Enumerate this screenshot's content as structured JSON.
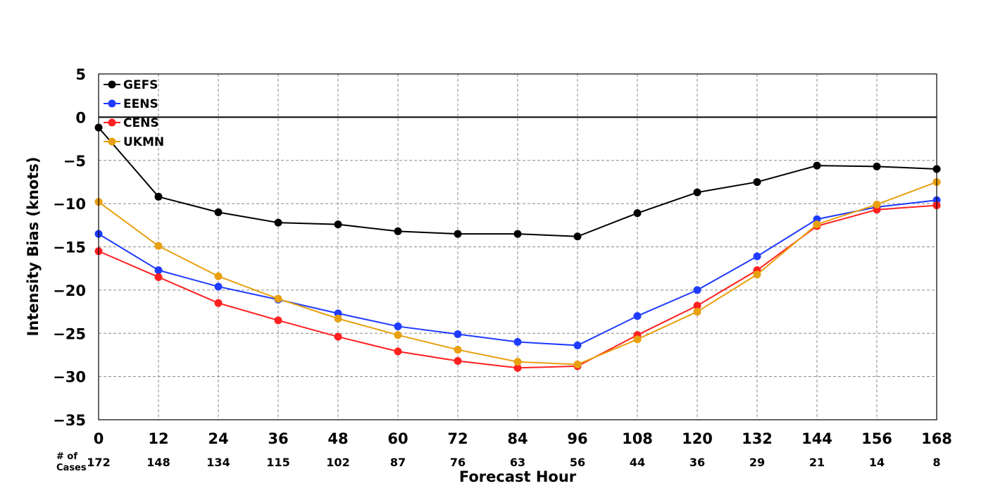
{
  "chart_data": {
    "type": "line",
    "xlabel": "Forecast Hour",
    "ylabel": "Intensity Bias (knots)",
    "x": [
      0,
      12,
      24,
      36,
      48,
      60,
      72,
      84,
      96,
      108,
      120,
      132,
      144,
      156,
      168
    ],
    "xlim": [
      0,
      168
    ],
    "ylim": [
      -35,
      5
    ],
    "x_ticks": [
      "0",
      "12",
      "24",
      "36",
      "48",
      "60",
      "72",
      "84",
      "96",
      "108",
      "120",
      "132",
      "144",
      "156",
      "168"
    ],
    "y_ticks": [
      5,
      0,
      -5,
      -10,
      -15,
      -20,
      -25,
      -30,
      -35
    ],
    "y_tick_labels": [
      "5",
      "0",
      "−5",
      "−10",
      "−15",
      "−20",
      "−25",
      "−30",
      "−35"
    ],
    "grid": true,
    "legend_position": "top-left",
    "cases_title_line1": "# of",
    "cases_title_line2": "Cases",
    "cases": [
      "172",
      "148",
      "134",
      "115",
      "102",
      "87",
      "76",
      "63",
      "56",
      "44",
      "36",
      "29",
      "21",
      "14",
      "8"
    ],
    "series": [
      {
        "name": "GEFS",
        "color": "#000000",
        "values": [
          -1.2,
          -9.2,
          -11.0,
          -12.2,
          -12.4,
          -13.2,
          -13.5,
          -13.5,
          -13.8,
          -11.1,
          -8.7,
          -7.5,
          -5.6,
          -5.7,
          -6.0
        ]
      },
      {
        "name": "EENS",
        "color": "#1f3bff",
        "values": [
          -13.5,
          -17.7,
          -19.6,
          -21.1,
          -22.7,
          -24.2,
          -25.1,
          -26.0,
          -26.4,
          -23.0,
          -20.0,
          -16.1,
          -11.8,
          -10.4,
          -9.6
        ]
      },
      {
        "name": "CENS",
        "color": "#ff2020",
        "values": [
          -15.5,
          -18.5,
          -21.5,
          -23.5,
          -25.4,
          -27.1,
          -28.2,
          -29.0,
          -28.8,
          -25.2,
          -21.8,
          -17.7,
          -12.6,
          -10.7,
          -10.2
        ]
      },
      {
        "name": "UKMN",
        "color": "#e8a010",
        "values": [
          -9.8,
          -14.9,
          -18.4,
          -21.0,
          -23.3,
          -25.2,
          -26.9,
          -28.3,
          -28.6,
          -25.7,
          -22.5,
          -18.2,
          -12.4,
          -10.1,
          -7.5
        ]
      }
    ]
  }
}
